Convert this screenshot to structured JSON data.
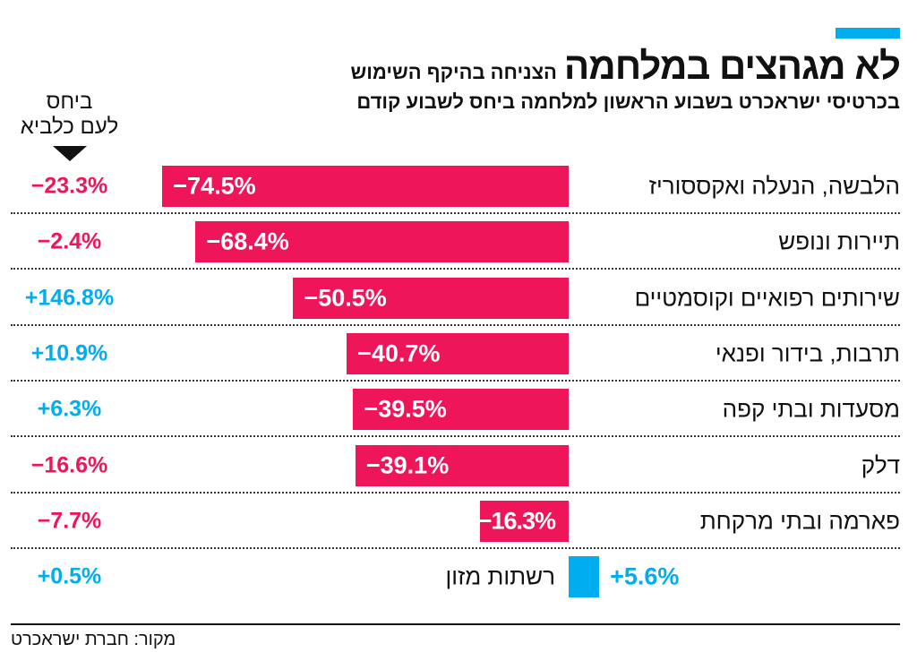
{
  "header": {
    "title_main": "לא מגהצים במלחמה",
    "title_secondary": "הצניחה בהיקף השימוש",
    "subtitle": "בכרטיסי ישראכרט בשבוע הראשון למלחמה ביחס לשבוע קודם"
  },
  "comparison_header": {
    "line1": "ביחס",
    "line2": "לעם כלביא"
  },
  "source": "מקור: חברת ישראכרט",
  "colors": {
    "negative": "#ee1559",
    "positive": "#00aeef",
    "accent": "#00aeef"
  },
  "chart_data": {
    "type": "bar",
    "orientation": "horizontal",
    "categories": [
      "הלבשה, הנעלה ואקססוריז",
      "תיירות ונופש",
      "שירותים רפואיים וקוסמטיים",
      "תרבות, בידור ופנאי",
      "מסעדות ובתי קפה",
      "דלק",
      "פארמה ובתי מרקחת",
      "רשתות מזון"
    ],
    "values": [
      -74.5,
      -68.4,
      -50.5,
      -40.7,
      -39.5,
      -39.1,
      -16.3,
      5.6
    ],
    "value_labels": [
      "−74.5%",
      "−68.4%",
      "−50.5%",
      "−40.7%",
      "−39.5%",
      "−39.1%",
      "−16.3%",
      "+5.6%"
    ],
    "comparison_values": [
      -23.3,
      -2.4,
      146.8,
      10.9,
      6.3,
      -16.6,
      -7.7,
      0.5
    ],
    "comparison_labels": [
      "−23.3%",
      "−2.4%",
      "+146.8%",
      "+10.9%",
      "+6.3%",
      "−16.6%",
      "−7.7%",
      "+0.5%"
    ],
    "grid": false
  }
}
